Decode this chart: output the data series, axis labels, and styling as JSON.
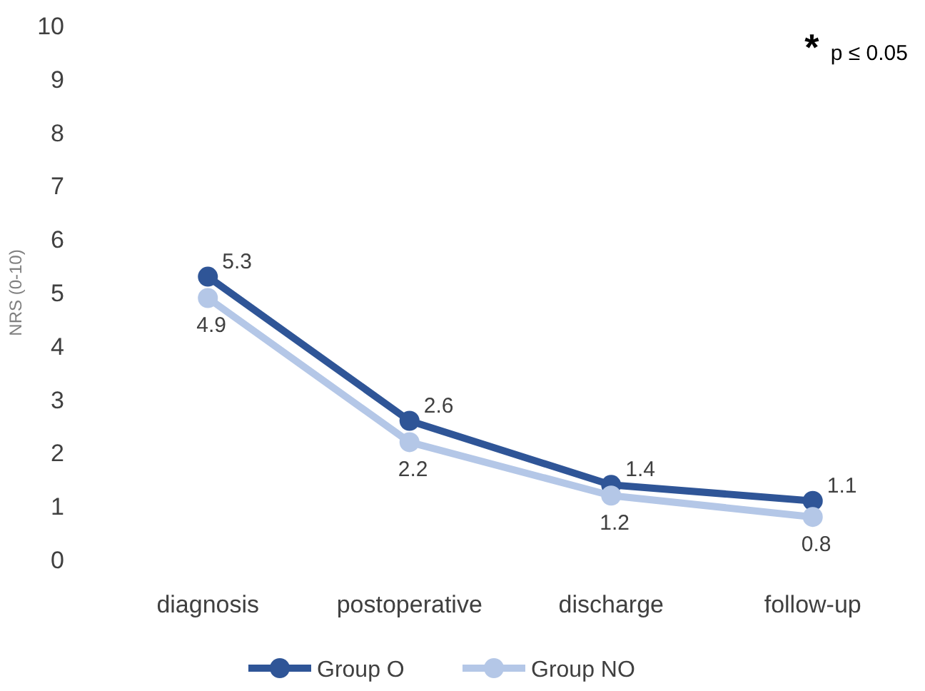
{
  "chart_data": {
    "type": "line",
    "ylabel": "NRS (0-10)",
    "categories": [
      "diagnosis",
      "postoperative",
      "discharge",
      "follow-up"
    ],
    "series": [
      {
        "name": "Group O",
        "color": "#2f5597",
        "values": [
          5.3,
          2.6,
          1.4,
          1.1
        ]
      },
      {
        "name": "Group NO",
        "color": "#b4c7e7",
        "values": [
          4.9,
          2.2,
          1.2,
          0.8
        ]
      }
    ],
    "ylim": [
      0,
      10
    ],
    "yticks": [
      0,
      1,
      2,
      3,
      4,
      5,
      6,
      7,
      8,
      9,
      10
    ],
    "marker": "circle",
    "data_labels": true,
    "legend": "bottom",
    "grid": false,
    "annotations": [
      "* p ≤ 0.05"
    ]
  }
}
